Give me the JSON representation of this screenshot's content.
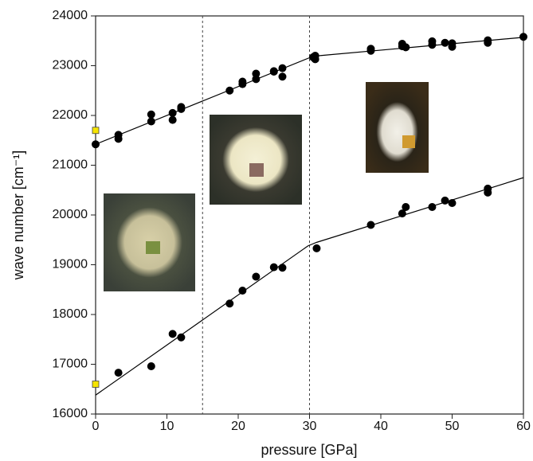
{
  "chart_data": {
    "type": "scatter",
    "xlabel": "pressure [GPa]",
    "ylabel": "wave number [cm⁻¹]",
    "xlim": [
      0,
      60
    ],
    "xticks": [
      0,
      10,
      20,
      30,
      40,
      50,
      60
    ],
    "ylim": [
      16000,
      24000
    ],
    "yticks": [
      16000,
      17000,
      18000,
      19000,
      20000,
      21000,
      22000,
      23000,
      24000
    ],
    "vlines": [
      15,
      30
    ],
    "series": [
      {
        "color": "#000000",
        "x": [
          0,
          3.2,
          3.2,
          7.8,
          7.8,
          10.8,
          10.8,
          12,
          12,
          18.8,
          20.6,
          20.6,
          22.5,
          22.5,
          25,
          25,
          26.2,
          26.2,
          30.5,
          30.8,
          30.8,
          38.6,
          38.6,
          43,
          43.5,
          43,
          47.2,
          47.2,
          49,
          50,
          50,
          55,
          55,
          60
        ],
        "values": [
          21420,
          21610,
          21530,
          22020,
          21880,
          22050,
          21910,
          22170,
          22130,
          22500,
          22680,
          22630,
          22840,
          22730,
          22890,
          22880,
          22950,
          22780,
          23170,
          23200,
          23130,
          23340,
          23300,
          23440,
          23370,
          23390,
          23490,
          23420,
          23460,
          23450,
          23380,
          23510,
          23460,
          23580
        ]
      },
      {
        "color": "#000000",
        "x": [
          3.2,
          7.8,
          10.8,
          12,
          18.8,
          20.6,
          22.5,
          25,
          26.2,
          31,
          38.6,
          43,
          43.5,
          47.2,
          49,
          50,
          55,
          55
        ],
        "values": [
          16830,
          16960,
          17610,
          17540,
          18220,
          18480,
          18760,
          18950,
          18940,
          19330,
          19800,
          20030,
          20160,
          20160,
          20290,
          20240,
          20530,
          20450
        ]
      },
      {
        "color": "#f5e400",
        "x": [
          0,
          0
        ],
        "values": [
          21700,
          16600
        ]
      }
    ],
    "fit_lines": [
      {
        "color": "#000000",
        "x": [
          0,
          30,
          30.5,
          60
        ],
        "values": [
          21420,
          23160,
          23190,
          23570
        ]
      },
      {
        "color": "#000000",
        "x": [
          0,
          29.8,
          31,
          60
        ],
        "values": [
          16380,
          19380,
          19450,
          20750
        ]
      }
    ]
  }
}
